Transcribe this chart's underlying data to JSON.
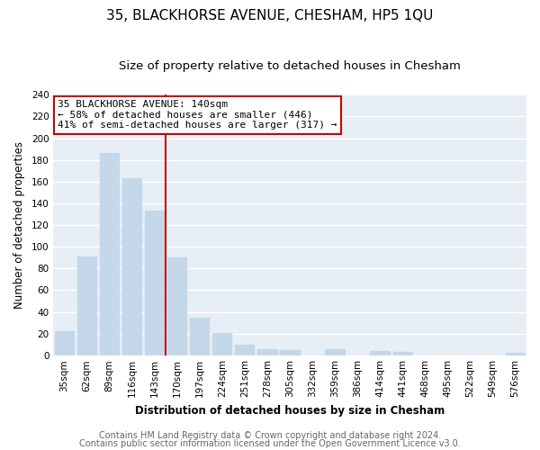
{
  "title": "35, BLACKHORSE AVENUE, CHESHAM, HP5 1QU",
  "subtitle": "Size of property relative to detached houses in Chesham",
  "xlabel": "Distribution of detached houses by size in Chesham",
  "ylabel": "Number of detached properties",
  "bar_labels": [
    "35sqm",
    "62sqm",
    "89sqm",
    "116sqm",
    "143sqm",
    "170sqm",
    "197sqm",
    "224sqm",
    "251sqm",
    "278sqm",
    "305sqm",
    "332sqm",
    "359sqm",
    "386sqm",
    "414sqm",
    "441sqm",
    "468sqm",
    "495sqm",
    "522sqm",
    "549sqm",
    "576sqm"
  ],
  "bar_values": [
    22,
    91,
    186,
    163,
    133,
    90,
    35,
    21,
    10,
    6,
    5,
    0,
    6,
    0,
    4,
    3,
    0,
    0,
    0,
    0,
    2
  ],
  "bar_color": "#c5d8ea",
  "vline_index": 4,
  "vline_color": "#cc0000",
  "ylim": [
    0,
    240
  ],
  "yticks": [
    0,
    20,
    40,
    60,
    80,
    100,
    120,
    140,
    160,
    180,
    200,
    220,
    240
  ],
  "annotation_title": "35 BLACKHORSE AVENUE: 140sqm",
  "annotation_line1": "← 58% of detached houses are smaller (446)",
  "annotation_line2": "41% of semi-detached houses are larger (317) →",
  "annotation_box_color": "#ffffff",
  "annotation_box_edge": "#cc0000",
  "footer1": "Contains HM Land Registry data © Crown copyright and database right 2024.",
  "footer2": "Contains public sector information licensed under the Open Government Licence v3.0.",
  "background_color": "#ffffff",
  "plot_background": "#e8eef5",
  "grid_color": "#ffffff",
  "title_fontsize": 11,
  "subtitle_fontsize": 9.5,
  "axis_label_fontsize": 8.5,
  "tick_fontsize": 7.5,
  "footer_fontsize": 7
}
